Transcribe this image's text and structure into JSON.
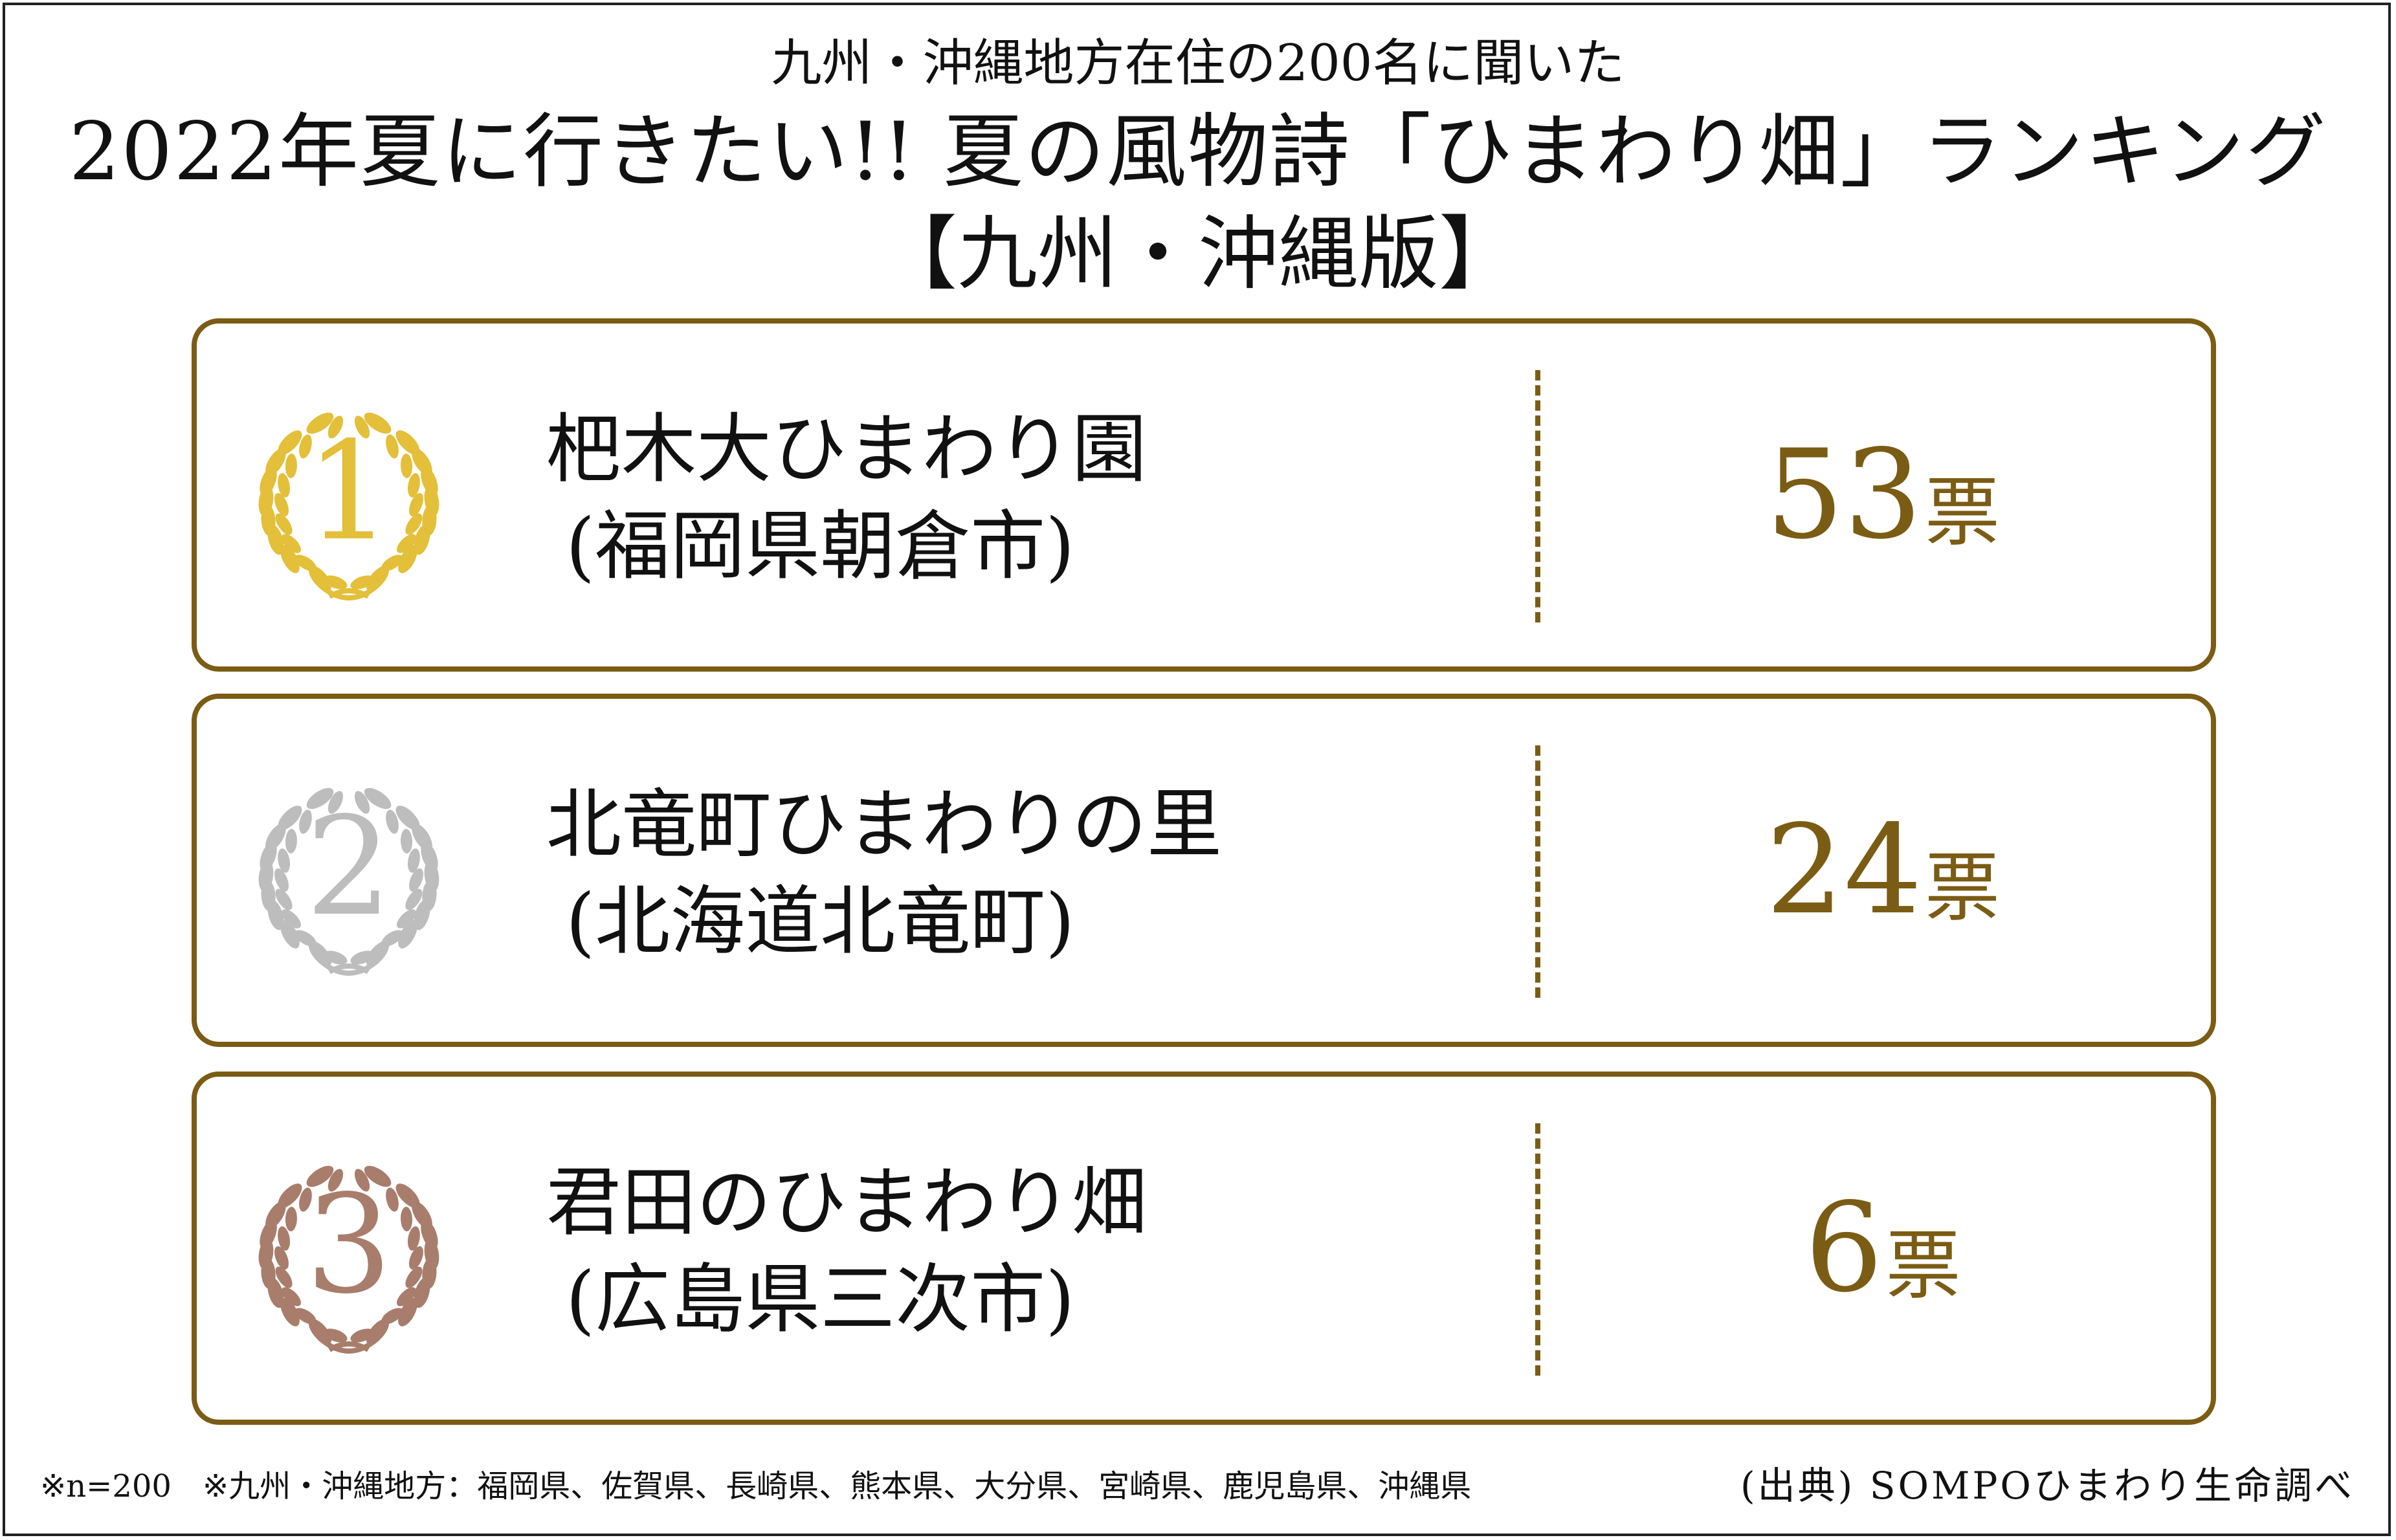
{
  "header": {
    "subtitle": "九州・沖縄地方在住の200名に聞いた",
    "title": "2022年夏に行きたい!!  夏の風物詩「ひまわり畑」ランキング",
    "title_edition": "【九州・沖縄版】"
  },
  "rankings": [
    {
      "rank": "1",
      "name": "杷木大ひまわり園",
      "location": "(福岡県朝倉市)",
      "votes": "53",
      "unit": "票",
      "medal": "gold",
      "medal_color": "#e3bf3a"
    },
    {
      "rank": "2",
      "name": "北竜町ひまわりの里",
      "location": "(北海道北竜町)",
      "votes": "24",
      "unit": "票",
      "medal": "silver",
      "medal_color": "#bdbdbd"
    },
    {
      "rank": "3",
      "name": "君田のひまわり畑",
      "location": "(広島県三次市)",
      "votes": "6",
      "unit": "票",
      "medal": "bronze",
      "medal_color": "#a87d6c"
    }
  ],
  "footer": {
    "footnote": "※n=200　※九州・沖縄地方：福岡県、佐賀県、長崎県、熊本県、大分県、宮崎県、鹿児島県、沖縄県",
    "source": "(出典) SOMPOひまわり生命調べ"
  },
  "colors": {
    "accent": "#7b5c14",
    "gold": "#e3bf3a",
    "silver": "#bdbdbd",
    "bronze": "#a87d6c"
  }
}
